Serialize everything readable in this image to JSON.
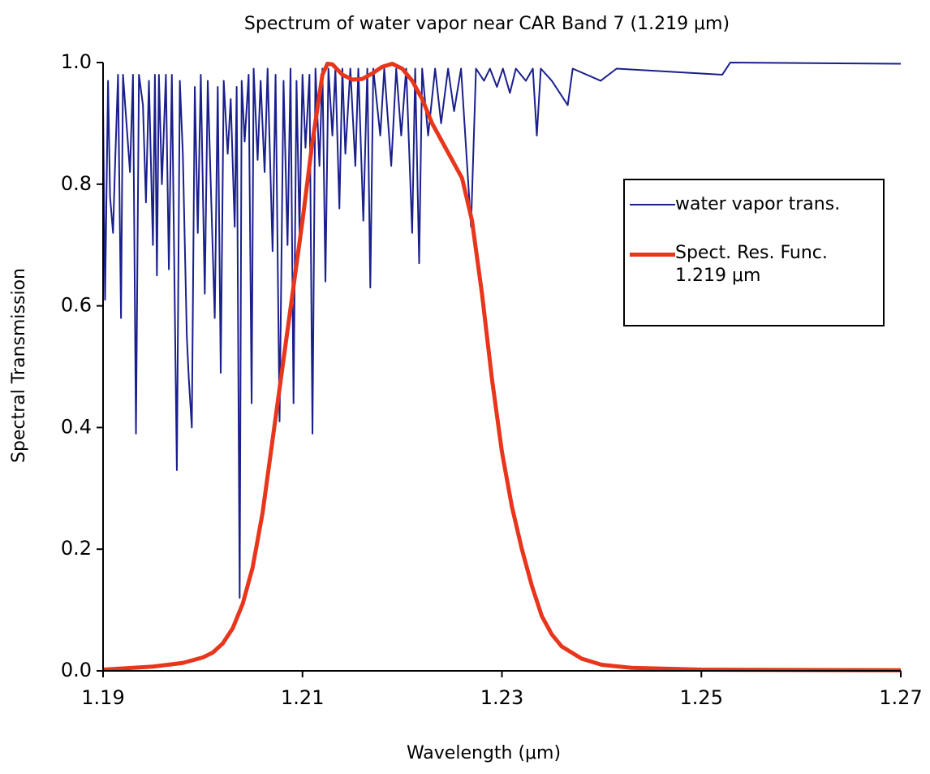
{
  "chart_data": {
    "type": "line",
    "title": "Spectrum of water vapor near CAR Band 7 (1.219 μm)",
    "xlabel": "Wavelength (μm)",
    "ylabel": "Spectral Transmission",
    "xlim": [
      1.19,
      1.27
    ],
    "xticks": [
      1.19,
      1.21,
      1.23,
      1.25,
      1.27
    ],
    "ylim": [
      0,
      1
    ],
    "yticks": [
      {
        "value": 0,
        "label": "0.0"
      },
      0.2,
      0.4,
      0.6,
      0.8,
      {
        "value": 1,
        "label": "1.0"
      }
    ],
    "legend": "right",
    "series": [
      {
        "name": "water vapor trans.",
        "color": "#1a1f8c",
        "width": 2,
        "x": [
          1.19,
          1.1902,
          1.1905,
          1.1907,
          1.191,
          1.1912,
          1.1915,
          1.1918,
          1.192,
          1.1927,
          1.193,
          1.1933,
          1.1936,
          1.194,
          1.1943,
          1.1946,
          1.195,
          1.1952,
          1.1954,
          1.1956,
          1.1959,
          1.1963,
          1.1966,
          1.1969,
          1.1974,
          1.1977,
          1.198,
          1.1984,
          1.1986,
          1.1989,
          1.1992,
          1.1995,
          1.1998,
          1.2002,
          1.2005,
          1.2008,
          1.2012,
          1.2015,
          1.2018,
          1.2021,
          1.2025,
          1.2028,
          1.2032,
          1.2034,
          1.2037,
          1.2039,
          1.2042,
          1.2046,
          1.2049,
          1.2051,
          1.2055,
          1.2058,
          1.2062,
          1.2065,
          1.207,
          1.2073,
          1.2077,
          1.2081,
          1.2085,
          1.2088,
          1.2091,
          1.2094,
          1.2097,
          1.21,
          1.2103,
          1.2107,
          1.211,
          1.2113,
          1.2117,
          1.212,
          1.2123,
          1.2126,
          1.213,
          1.2133,
          1.2137,
          1.214,
          1.2143,
          1.2148,
          1.2153,
          1.2156,
          1.2161,
          1.2165,
          1.2168,
          1.2171,
          1.2178,
          1.2182,
          1.2189,
          1.2194,
          1.2199,
          1.2204,
          1.221,
          1.2213,
          1.2217,
          1.222,
          1.2226,
          1.2233,
          1.2239,
          1.2246,
          1.2252,
          1.2259,
          1.2269,
          1.2274,
          1.2282,
          1.2288,
          1.2295,
          1.2301,
          1.2308,
          1.2314,
          1.2324,
          1.2331,
          1.2335,
          1.2339,
          1.235,
          1.2366,
          1.2371,
          1.2399,
          1.2415,
          1.2521,
          1.2529,
          1.27
        ],
        "values": [
          0.93,
          0.61,
          0.97,
          0.78,
          0.72,
          0.83,
          0.98,
          0.58,
          0.98,
          0.82,
          0.98,
          0.39,
          0.98,
          0.93,
          0.77,
          0.97,
          0.7,
          0.98,
          0.65,
          0.98,
          0.8,
          0.98,
          0.66,
          0.98,
          0.33,
          0.97,
          0.85,
          0.55,
          0.48,
          0.4,
          0.96,
          0.72,
          0.98,
          0.62,
          0.97,
          0.8,
          0.58,
          0.96,
          0.49,
          0.97,
          0.85,
          0.94,
          0.73,
          0.96,
          0.12,
          0.97,
          0.87,
          0.98,
          0.44,
          0.99,
          0.84,
          0.97,
          0.82,
          0.99,
          0.69,
          0.98,
          0.41,
          0.97,
          0.7,
          0.99,
          0.44,
          0.97,
          0.72,
          0.98,
          0.86,
          0.98,
          0.39,
          0.99,
          0.83,
          0.99,
          0.64,
          0.99,
          0.88,
          0.99,
          0.76,
          0.99,
          0.85,
          0.99,
          0.83,
          0.99,
          0.74,
          0.99,
          0.63,
          0.99,
          0.88,
          0.99,
          0.83,
          0.99,
          0.88,
          0.99,
          0.72,
          0.99,
          0.67,
          0.99,
          0.88,
          0.99,
          0.9,
          0.99,
          0.92,
          0.99,
          0.73,
          0.99,
          0.97,
          0.99,
          0.96,
          0.99,
          0.95,
          0.99,
          0.97,
          0.99,
          0.88,
          0.99,
          0.97,
          0.93,
          0.99,
          0.97,
          0.99,
          0.98,
          1.0,
          0.998
        ]
      },
      {
        "name": "Spect. Res. Func.\n1.219 μm",
        "color": "#e8361c",
        "width": 5,
        "x": [
          1.19,
          1.195,
          1.198,
          1.2,
          1.201,
          1.202,
          1.203,
          1.204,
          1.205,
          1.206,
          1.207,
          1.208,
          1.209,
          1.21,
          1.211,
          1.212,
          1.2125,
          1.213,
          1.214,
          1.215,
          1.216,
          1.217,
          1.218,
          1.219,
          1.22,
          1.221,
          1.222,
          1.223,
          1.224,
          1.225,
          1.226,
          1.227,
          1.228,
          1.229,
          1.23,
          1.231,
          1.232,
          1.233,
          1.234,
          1.235,
          1.236,
          1.238,
          1.24,
          1.243,
          1.25,
          1.27
        ],
        "values": [
          0.002,
          0.007,
          0.013,
          0.022,
          0.03,
          0.045,
          0.07,
          0.11,
          0.17,
          0.26,
          0.38,
          0.5,
          0.62,
          0.74,
          0.87,
          0.98,
          0.998,
          0.997,
          0.98,
          0.972,
          0.973,
          0.982,
          0.993,
          0.998,
          0.99,
          0.97,
          0.94,
          0.9,
          0.87,
          0.84,
          0.81,
          0.74,
          0.62,
          0.48,
          0.36,
          0.27,
          0.2,
          0.14,
          0.09,
          0.06,
          0.04,
          0.02,
          0.01,
          0.005,
          0.002,
          0.001
        ]
      }
    ]
  }
}
